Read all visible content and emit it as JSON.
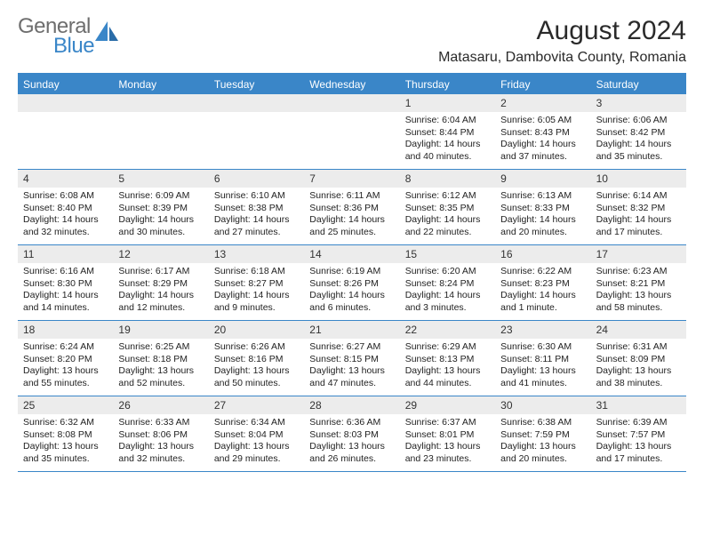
{
  "logo": {
    "line1": "General",
    "line2": "Blue"
  },
  "header": {
    "title": "August 2024",
    "location": "Matasaru, Dambovita County, Romania"
  },
  "colors": {
    "accent": "#3a86c8",
    "header_text": "#ffffff",
    "daynum_bg": "#ececec",
    "text": "#222222",
    "logo_gray": "#6e6e6e"
  },
  "dayNames": [
    "Sunday",
    "Monday",
    "Tuesday",
    "Wednesday",
    "Thursday",
    "Friday",
    "Saturday"
  ],
  "weeks": [
    [
      null,
      null,
      null,
      null,
      {
        "n": "1",
        "sr": "6:04 AM",
        "ss": "8:44 PM",
        "dl": "14 hours and 40 minutes."
      },
      {
        "n": "2",
        "sr": "6:05 AM",
        "ss": "8:43 PM",
        "dl": "14 hours and 37 minutes."
      },
      {
        "n": "3",
        "sr": "6:06 AM",
        "ss": "8:42 PM",
        "dl": "14 hours and 35 minutes."
      }
    ],
    [
      {
        "n": "4",
        "sr": "6:08 AM",
        "ss": "8:40 PM",
        "dl": "14 hours and 32 minutes."
      },
      {
        "n": "5",
        "sr": "6:09 AM",
        "ss": "8:39 PM",
        "dl": "14 hours and 30 minutes."
      },
      {
        "n": "6",
        "sr": "6:10 AM",
        "ss": "8:38 PM",
        "dl": "14 hours and 27 minutes."
      },
      {
        "n": "7",
        "sr": "6:11 AM",
        "ss": "8:36 PM",
        "dl": "14 hours and 25 minutes."
      },
      {
        "n": "8",
        "sr": "6:12 AM",
        "ss": "8:35 PM",
        "dl": "14 hours and 22 minutes."
      },
      {
        "n": "9",
        "sr": "6:13 AM",
        "ss": "8:33 PM",
        "dl": "14 hours and 20 minutes."
      },
      {
        "n": "10",
        "sr": "6:14 AM",
        "ss": "8:32 PM",
        "dl": "14 hours and 17 minutes."
      }
    ],
    [
      {
        "n": "11",
        "sr": "6:16 AM",
        "ss": "8:30 PM",
        "dl": "14 hours and 14 minutes."
      },
      {
        "n": "12",
        "sr": "6:17 AM",
        "ss": "8:29 PM",
        "dl": "14 hours and 12 minutes."
      },
      {
        "n": "13",
        "sr": "6:18 AM",
        "ss": "8:27 PM",
        "dl": "14 hours and 9 minutes."
      },
      {
        "n": "14",
        "sr": "6:19 AM",
        "ss": "8:26 PM",
        "dl": "14 hours and 6 minutes."
      },
      {
        "n": "15",
        "sr": "6:20 AM",
        "ss": "8:24 PM",
        "dl": "14 hours and 3 minutes."
      },
      {
        "n": "16",
        "sr": "6:22 AM",
        "ss": "8:23 PM",
        "dl": "14 hours and 1 minute."
      },
      {
        "n": "17",
        "sr": "6:23 AM",
        "ss": "8:21 PM",
        "dl": "13 hours and 58 minutes."
      }
    ],
    [
      {
        "n": "18",
        "sr": "6:24 AM",
        "ss": "8:20 PM",
        "dl": "13 hours and 55 minutes."
      },
      {
        "n": "19",
        "sr": "6:25 AM",
        "ss": "8:18 PM",
        "dl": "13 hours and 52 minutes."
      },
      {
        "n": "20",
        "sr": "6:26 AM",
        "ss": "8:16 PM",
        "dl": "13 hours and 50 minutes."
      },
      {
        "n": "21",
        "sr": "6:27 AM",
        "ss": "8:15 PM",
        "dl": "13 hours and 47 minutes."
      },
      {
        "n": "22",
        "sr": "6:29 AM",
        "ss": "8:13 PM",
        "dl": "13 hours and 44 minutes."
      },
      {
        "n": "23",
        "sr": "6:30 AM",
        "ss": "8:11 PM",
        "dl": "13 hours and 41 minutes."
      },
      {
        "n": "24",
        "sr": "6:31 AM",
        "ss": "8:09 PM",
        "dl": "13 hours and 38 minutes."
      }
    ],
    [
      {
        "n": "25",
        "sr": "6:32 AM",
        "ss": "8:08 PM",
        "dl": "13 hours and 35 minutes."
      },
      {
        "n": "26",
        "sr": "6:33 AM",
        "ss": "8:06 PM",
        "dl": "13 hours and 32 minutes."
      },
      {
        "n": "27",
        "sr": "6:34 AM",
        "ss": "8:04 PM",
        "dl": "13 hours and 29 minutes."
      },
      {
        "n": "28",
        "sr": "6:36 AM",
        "ss": "8:03 PM",
        "dl": "13 hours and 26 minutes."
      },
      {
        "n": "29",
        "sr": "6:37 AM",
        "ss": "8:01 PM",
        "dl": "13 hours and 23 minutes."
      },
      {
        "n": "30",
        "sr": "6:38 AM",
        "ss": "7:59 PM",
        "dl": "13 hours and 20 minutes."
      },
      {
        "n": "31",
        "sr": "6:39 AM",
        "ss": "7:57 PM",
        "dl": "13 hours and 17 minutes."
      }
    ]
  ],
  "labels": {
    "sunrise": "Sunrise:",
    "sunset": "Sunset:",
    "daylight": "Daylight:"
  }
}
